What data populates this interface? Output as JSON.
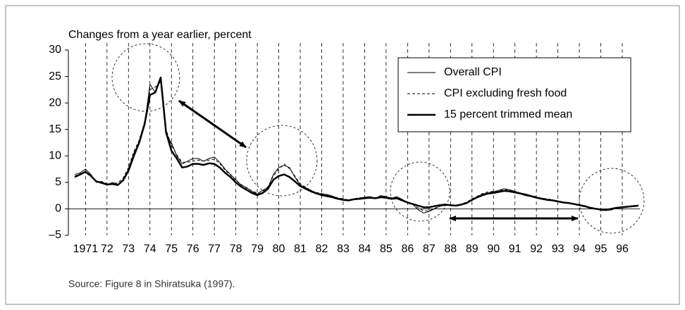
{
  "chart_data": {
    "type": "line",
    "y_label": "Changes from a year earlier, percent",
    "source": "Source: Figure 8 in Shiratsuka (1997).",
    "x": [
      1970.5,
      1970.75,
      1971,
      1971.25,
      1971.5,
      1971.75,
      1972,
      1972.25,
      1972.5,
      1972.75,
      1973,
      1973.25,
      1973.5,
      1973.75,
      1974,
      1974.25,
      1974.5,
      1974.75,
      1975,
      1975.25,
      1975.5,
      1975.75,
      1976,
      1976.25,
      1976.5,
      1976.75,
      1977,
      1977.25,
      1977.5,
      1977.75,
      1978,
      1978.25,
      1978.5,
      1978.75,
      1979,
      1979.25,
      1979.5,
      1979.75,
      1980,
      1980.25,
      1980.5,
      1980.75,
      1981,
      1981.25,
      1981.5,
      1981.75,
      1982,
      1982.25,
      1982.5,
      1982.75,
      1983,
      1983.25,
      1983.5,
      1983.75,
      1984,
      1984.25,
      1984.5,
      1984.75,
      1985,
      1985.25,
      1985.5,
      1985.75,
      1986,
      1986.25,
      1986.5,
      1986.75,
      1987,
      1987.25,
      1987.5,
      1987.75,
      1988,
      1988.25,
      1988.5,
      1988.75,
      1989,
      1989.25,
      1989.5,
      1989.75,
      1990,
      1990.25,
      1990.5,
      1990.75,
      1991,
      1991.25,
      1991.5,
      1991.75,
      1992,
      1992.25,
      1992.5,
      1992.75,
      1993,
      1993.25,
      1993.5,
      1993.75,
      1994,
      1994.25,
      1994.5,
      1994.75,
      1995,
      1995.25,
      1995.5,
      1995.75,
      1996,
      1996.25,
      1996.5,
      1996.75
    ],
    "series": [
      {
        "name": "Overall CPI",
        "color": "#000000",
        "linestyle": "solid",
        "linewidth": 1,
        "values": [
          6.5,
          6.8,
          7.5,
          6.5,
          5.0,
          5.2,
          4.5,
          5.0,
          4.6,
          5.5,
          7.5,
          10.5,
          12.5,
          16.0,
          23.5,
          22.0,
          24.5,
          14.0,
          12.5,
          10.0,
          8.5,
          9.0,
          9.5,
          9.5,
          9.0,
          9.5,
          9.8,
          8.8,
          7.5,
          6.5,
          5.5,
          4.5,
          4.0,
          3.3,
          2.8,
          3.5,
          4.0,
          6.5,
          7.8,
          8.2,
          7.8,
          6.0,
          4.5,
          4.0,
          3.5,
          3.0,
          2.8,
          2.7,
          2.4,
          2.0,
          1.8,
          1.5,
          1.8,
          2.0,
          2.2,
          2.3,
          2.0,
          2.5,
          2.3,
          2.0,
          2.3,
          1.8,
          1.2,
          0.8,
          -0.2,
          -0.8,
          -0.5,
          0.0,
          0.5,
          0.7,
          0.7,
          0.6,
          0.8,
          1.2,
          1.8,
          2.3,
          2.8,
          3.0,
          3.2,
          3.5,
          3.8,
          3.6,
          3.3,
          3.0,
          2.8,
          2.5,
          2.2,
          2.0,
          1.8,
          1.7,
          1.5,
          1.2,
          1.2,
          1.0,
          0.8,
          0.6,
          0.2,
          0.0,
          -0.3,
          -0.3,
          -0.2,
          0.2,
          0.4,
          0.5,
          0.6,
          0.7
        ]
      },
      {
        "name": "CPI excluding fresh food",
        "color": "#000000",
        "linestyle": "dashed",
        "linewidth": 1,
        "values": [
          6.2,
          6.6,
          7.0,
          6.3,
          5.2,
          5.0,
          4.8,
          4.8,
          4.9,
          5.8,
          7.8,
          10.8,
          13.0,
          16.5,
          22.5,
          23.0,
          24.0,
          15.0,
          12.0,
          10.2,
          8.8,
          8.8,
          9.0,
          9.2,
          9.0,
          9.2,
          9.4,
          8.6,
          7.3,
          6.4,
          5.4,
          4.6,
          3.9,
          3.4,
          3.0,
          3.3,
          4.2,
          6.2,
          7.5,
          8.5,
          7.6,
          6.2,
          4.7,
          4.1,
          3.4,
          3.1,
          2.9,
          2.6,
          2.3,
          2.1,
          1.9,
          1.7,
          1.9,
          2.1,
          2.1,
          2.2,
          2.1,
          2.3,
          2.2,
          2.1,
          2.1,
          1.7,
          1.3,
          0.8,
          0.2,
          -0.4,
          -0.4,
          0.1,
          0.5,
          0.6,
          0.6,
          0.7,
          0.9,
          1.3,
          1.9,
          2.4,
          2.9,
          3.2,
          3.3,
          3.4,
          3.6,
          3.5,
          3.2,
          3.0,
          2.7,
          2.5,
          2.3,
          2.0,
          1.9,
          1.7,
          1.5,
          1.3,
          1.1,
          1.0,
          0.8,
          0.6,
          0.3,
          0.1,
          -0.2,
          -0.2,
          0.0,
          0.2,
          0.3,
          0.5,
          0.6,
          0.6
        ]
      },
      {
        "name": "15 percent trimmed mean",
        "color": "#000000",
        "linestyle": "solid",
        "linewidth": 2.5,
        "values": [
          6.0,
          6.5,
          7.0,
          6.2,
          5.2,
          4.9,
          4.6,
          4.7,
          4.5,
          5.4,
          7.2,
          10.0,
          12.5,
          16.0,
          21.5,
          22.0,
          24.8,
          14.5,
          11.0,
          9.5,
          7.8,
          8.0,
          8.5,
          8.5,
          8.3,
          8.6,
          8.5,
          7.8,
          6.8,
          6.0,
          5.0,
          4.2,
          3.6,
          3.0,
          2.6,
          3.0,
          3.8,
          5.5,
          6.2,
          6.5,
          6.0,
          5.2,
          4.3,
          3.8,
          3.3,
          2.9,
          2.6,
          2.4,
          2.2,
          1.9,
          1.7,
          1.6,
          1.8,
          1.9,
          2.0,
          2.1,
          2.0,
          2.2,
          2.1,
          1.9,
          2.0,
          1.6,
          1.2,
          0.9,
          0.6,
          0.3,
          0.3,
          0.5,
          0.7,
          0.8,
          0.7,
          0.6,
          0.8,
          1.1,
          1.7,
          2.2,
          2.6,
          2.9,
          3.0,
          3.2,
          3.4,
          3.3,
          3.1,
          2.9,
          2.6,
          2.4,
          2.1,
          1.9,
          1.7,
          1.6,
          1.4,
          1.2,
          1.1,
          0.9,
          0.7,
          0.5,
          0.2,
          0.0,
          -0.1,
          -0.2,
          0.0,
          0.2,
          0.3,
          0.4,
          0.5,
          0.6
        ]
      }
    ],
    "xlim": [
      1970.2,
      1996.82
    ],
    "xticks": [
      {
        "value": 1971,
        "label": "1971"
      },
      {
        "value": 1972,
        "label": "72"
      },
      {
        "value": 1973,
        "label": "73"
      },
      {
        "value": 1974,
        "label": "74"
      },
      {
        "value": 1975,
        "label": "75"
      },
      {
        "value": 1976,
        "label": "76"
      },
      {
        "value": 1977,
        "label": "77"
      },
      {
        "value": 1978,
        "label": "78"
      },
      {
        "value": 1979,
        "label": "79"
      },
      {
        "value": 1980,
        "label": "80"
      },
      {
        "value": 1981,
        "label": "81"
      },
      {
        "value": 1982,
        "label": "82"
      },
      {
        "value": 1983,
        "label": "83"
      },
      {
        "value": 1984,
        "label": "84"
      },
      {
        "value": 1985,
        "label": "85"
      },
      {
        "value": 1986,
        "label": "86"
      },
      {
        "value": 1987,
        "label": "87"
      },
      {
        "value": 1988,
        "label": "88"
      },
      {
        "value": 1989,
        "label": "89"
      },
      {
        "value": 1990,
        "label": "90"
      },
      {
        "value": 1991,
        "label": "91"
      },
      {
        "value": 1992,
        "label": "92"
      },
      {
        "value": 1993,
        "label": "93"
      },
      {
        "value": 1994,
        "label": "94"
      },
      {
        "value": 1995,
        "label": "95"
      },
      {
        "value": 1996,
        "label": "96"
      }
    ],
    "ylim": [
      -5,
      30
    ],
    "yticks": [
      {
        "value": -5,
        "label": "–5"
      },
      0,
      5,
      10,
      15,
      20,
      25,
      30
    ],
    "grid": "x-dashed",
    "legend": "upper right"
  }
}
